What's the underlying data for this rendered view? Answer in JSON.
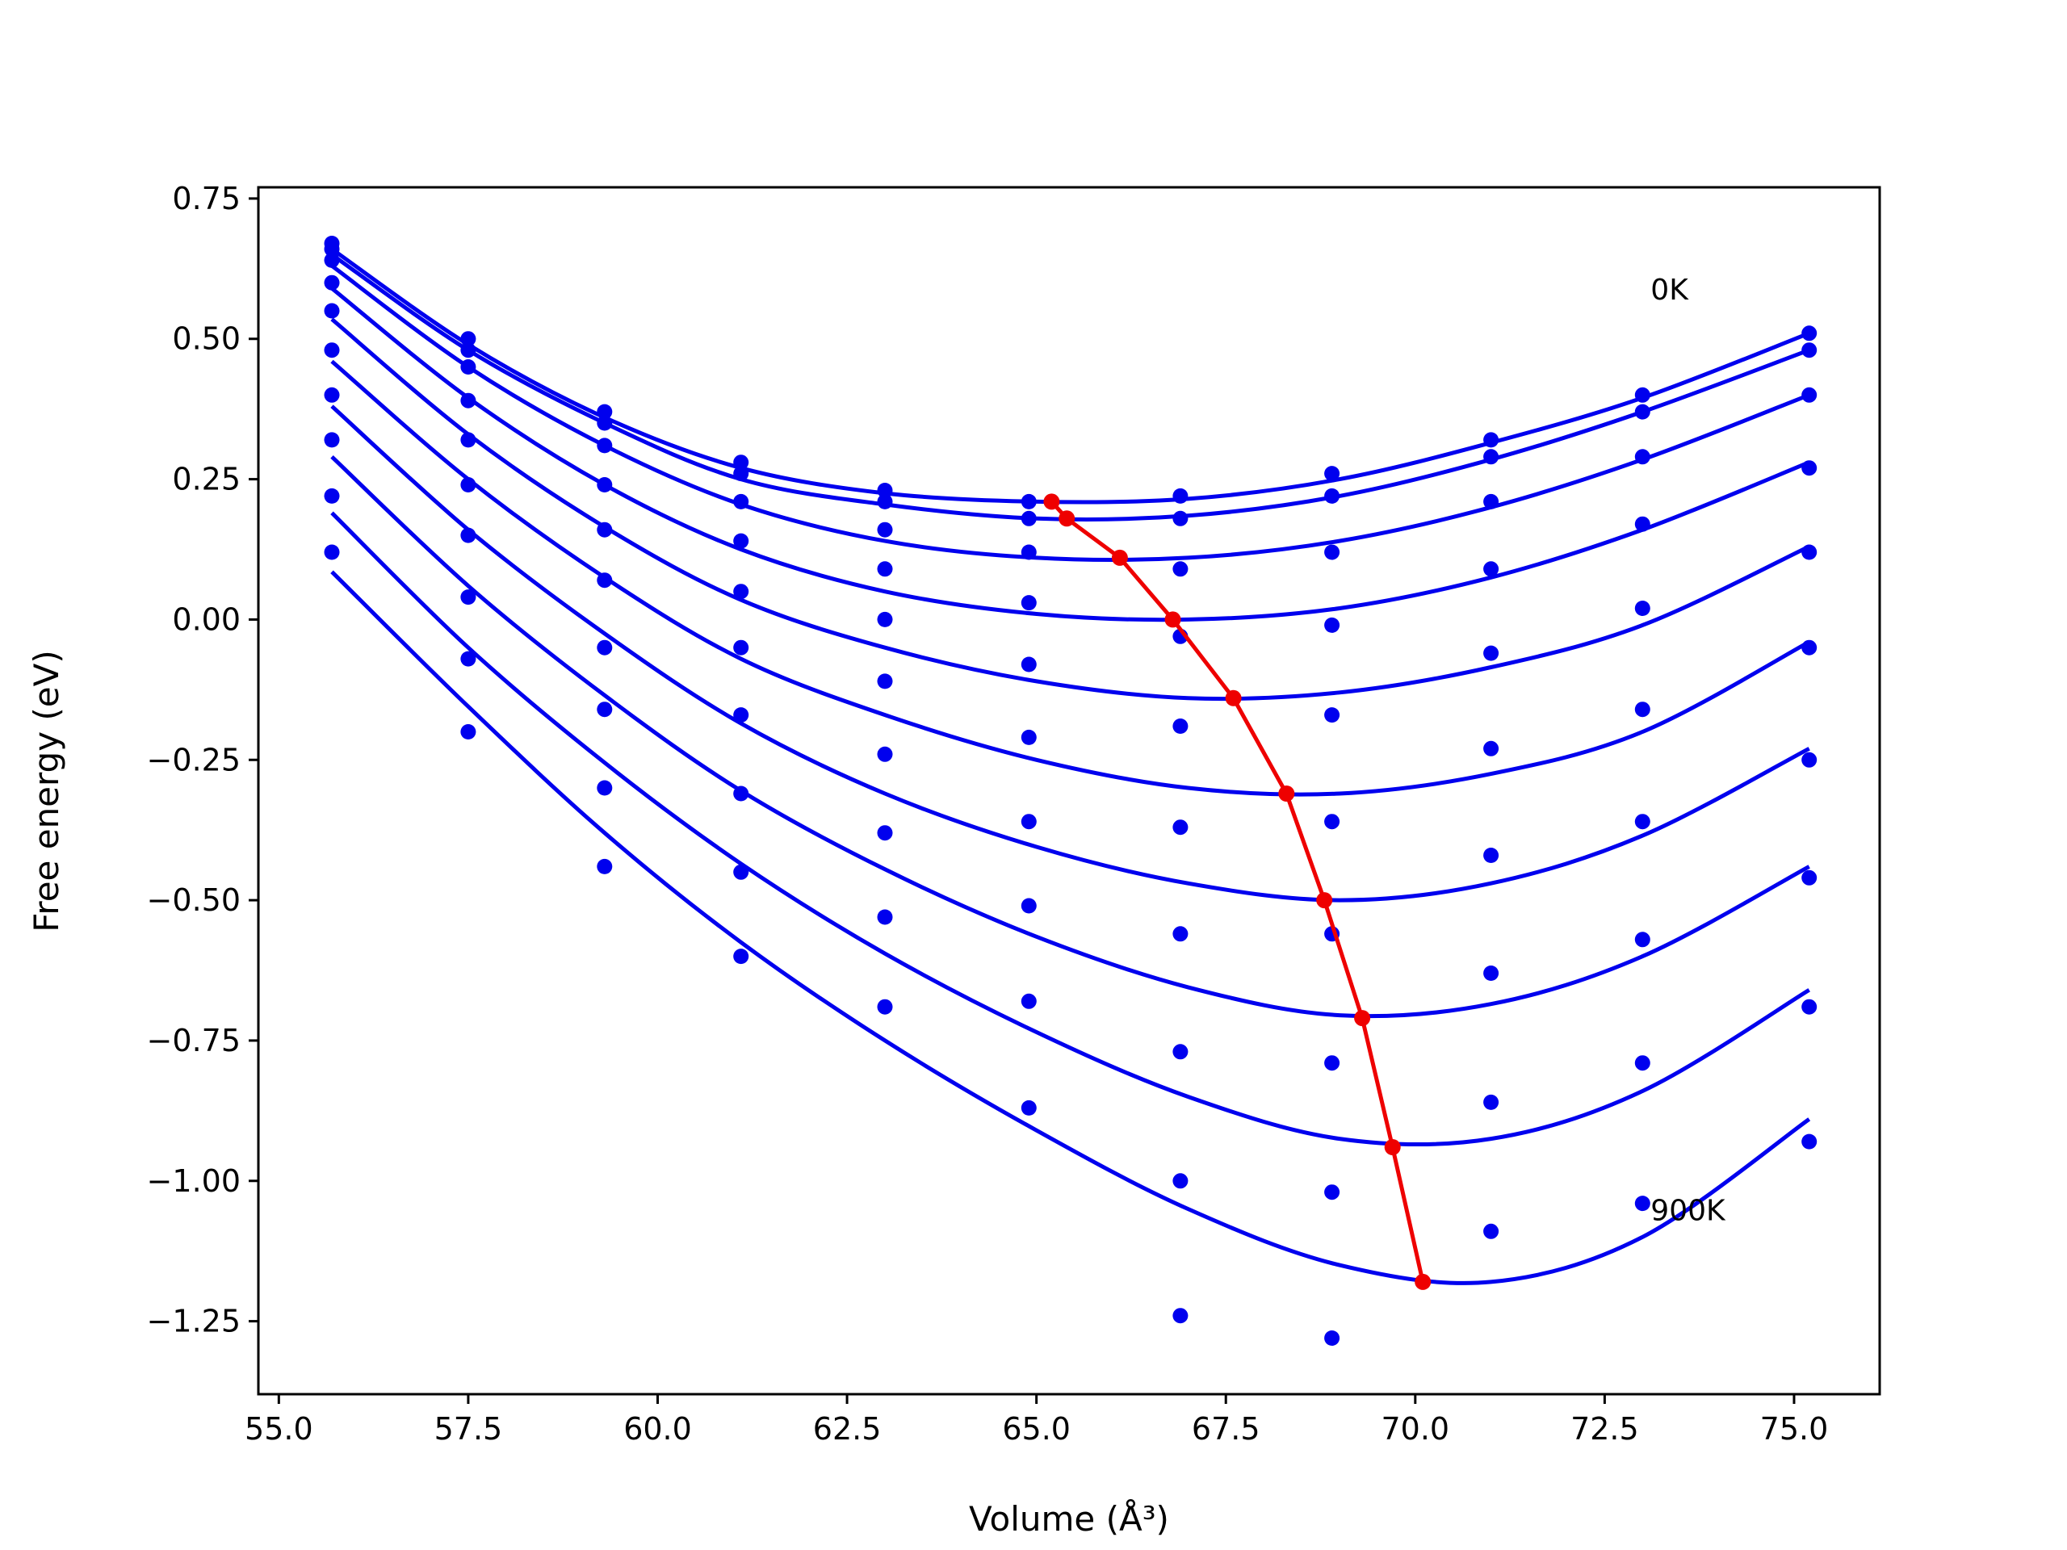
{
  "chart_data": {
    "type": "scatter",
    "xlabel": "Volume (Å³)",
    "ylabel": "Free energy (eV)",
    "xlim": [
      54.73,
      76.13
    ],
    "ylim": [
      -1.38,
      0.77
    ],
    "grid": false,
    "xticks": [
      "55.0",
      "57.5",
      "60.0",
      "62.5",
      "65.0",
      "67.5",
      "70.0",
      "72.5",
      "75.0"
    ],
    "yticks": [
      "0.75",
      "0.50",
      "0.25",
      "0.00",
      "−0.25",
      "−0.50",
      "−0.75",
      "−1.00",
      "−1.25"
    ],
    "x": [
      55.7,
      57.5,
      59.3,
      61.1,
      63.0,
      64.9,
      66.9,
      68.9,
      71.0,
      73.0,
      75.2
    ],
    "annotations": [
      {
        "text": "0K",
        "x": 73.0,
        "y": 0.57
      },
      {
        "text": "900K",
        "x": 73.0,
        "y": -1.07
      }
    ],
    "series": [
      {
        "kind": "points",
        "y": [
          0.67,
          0.5,
          0.37,
          0.28,
          0.23,
          0.21,
          0.22,
          0.26,
          0.32,
          0.4,
          0.51
        ]
      },
      {
        "kind": "points",
        "y": [
          0.66,
          0.48,
          0.35,
          0.26,
          0.21,
          0.18,
          0.18,
          0.22,
          0.29,
          0.37,
          0.48
        ]
      },
      {
        "kind": "points",
        "y": [
          0.64,
          0.45,
          0.31,
          0.21,
          0.16,
          0.12,
          0.09,
          0.12,
          0.21,
          0.29,
          0.4
        ]
      },
      {
        "kind": "points",
        "y": [
          0.6,
          0.39,
          0.24,
          0.14,
          0.09,
          0.03,
          -0.03,
          -0.01,
          0.09,
          0.17,
          0.27
        ]
      },
      {
        "kind": "points",
        "y": [
          0.55,
          0.32,
          0.16,
          0.05,
          0.0,
          -0.08,
          -0.19,
          -0.17,
          -0.06,
          0.02,
          0.12
        ]
      },
      {
        "kind": "points",
        "y": [
          0.48,
          0.24,
          0.07,
          -0.05,
          -0.11,
          -0.21,
          -0.37,
          -0.36,
          -0.23,
          -0.16,
          -0.05
        ]
      },
      {
        "kind": "points",
        "y": [
          0.4,
          0.15,
          -0.05,
          -0.17,
          -0.24,
          -0.36,
          -0.56,
          -0.56,
          -0.42,
          -0.36,
          -0.25
        ]
      },
      {
        "kind": "points",
        "y": [
          0.32,
          0.04,
          -0.16,
          -0.31,
          -0.38,
          -0.51,
          -0.77,
          -0.79,
          -0.63,
          -0.57,
          -0.46
        ]
      },
      {
        "kind": "points",
        "y": [
          0.22,
          -0.07,
          -0.3,
          -0.45,
          -0.53,
          -0.68,
          -1.0,
          -1.02,
          -0.86,
          -0.79,
          -0.69
        ]
      },
      {
        "kind": "points",
        "y": [
          0.12,
          -0.2,
          -0.44,
          -0.6,
          -0.69,
          -0.87,
          -1.24,
          -1.28,
          -1.09,
          -1.04,
          -0.93
        ]
      },
      {
        "kind": "fit",
        "x": [
          55.7,
          57.5,
          59.3,
          61.1,
          63.0,
          65.0,
          67.0,
          69.0,
          71.0,
          73.0,
          75.2
        ],
        "y": [
          0.66,
          0.49,
          0.36,
          0.27,
          0.225,
          0.21,
          0.215,
          0.25,
          0.315,
          0.395,
          0.51
        ]
      },
      {
        "kind": "fit",
        "x": [
          55.7,
          57.5,
          59.3,
          61.1,
          63.0,
          65.0,
          67.0,
          69.0,
          71.0,
          73.0,
          75.2
        ],
        "y": [
          0.65,
          0.48,
          0.35,
          0.25,
          0.205,
          0.18,
          0.185,
          0.22,
          0.285,
          0.37,
          0.48
        ]
      },
      {
        "kind": "fit",
        "x": [
          55.7,
          57.5,
          59.3,
          61.1,
          63.0,
          65.0,
          67.0,
          69.0,
          71.0,
          73.0,
          75.2
        ],
        "y": [
          0.63,
          0.45,
          0.31,
          0.205,
          0.14,
          0.11,
          0.11,
          0.14,
          0.2,
          0.285,
          0.4
        ]
      },
      {
        "kind": "fit",
        "x": [
          55.7,
          57.5,
          59.3,
          61.1,
          63.0,
          65.0,
          67.0,
          69.0,
          71.0,
          73.0,
          75.2
        ],
        "y": [
          0.59,
          0.395,
          0.24,
          0.125,
          0.05,
          0.01,
          0.0,
          0.02,
          0.075,
          0.16,
          0.28
        ]
      },
      {
        "kind": "fit",
        "x": [
          55.7,
          57.5,
          59.3,
          61.1,
          63.0,
          65.0,
          67.0,
          69.0,
          71.0,
          73.0,
          75.2
        ],
        "y": [
          0.535,
          0.33,
          0.165,
          0.035,
          -0.05,
          -0.11,
          -0.14,
          -0.13,
          -0.085,
          -0.01,
          0.13
        ]
      },
      {
        "kind": "fit",
        "x": [
          55.7,
          57.5,
          59.3,
          61.1,
          63.0,
          65.0,
          67.0,
          69.0,
          71.0,
          73.0,
          75.2
        ],
        "y": [
          0.46,
          0.25,
          0.075,
          -0.07,
          -0.17,
          -0.25,
          -0.3,
          -0.31,
          -0.275,
          -0.2,
          -0.04
        ]
      },
      {
        "kind": "fit",
        "x": [
          55.7,
          57.5,
          59.3,
          61.1,
          63.0,
          65.0,
          67.0,
          69.0,
          71.0,
          73.0,
          75.2
        ],
        "y": [
          0.38,
          0.16,
          -0.025,
          -0.185,
          -0.31,
          -0.405,
          -0.47,
          -0.5,
          -0.47,
          -0.385,
          -0.23
        ]
      },
      {
        "kind": "fit",
        "x": [
          55.7,
          57.5,
          59.3,
          61.1,
          63.0,
          65.0,
          67.0,
          69.0,
          71.0,
          73.0,
          75.2
        ],
        "y": [
          0.29,
          0.06,
          -0.135,
          -0.305,
          -0.445,
          -0.565,
          -0.655,
          -0.705,
          -0.685,
          -0.6,
          -0.44
        ]
      },
      {
        "kind": "fit",
        "x": [
          55.7,
          57.5,
          59.3,
          61.1,
          63.0,
          65.0,
          67.0,
          69.0,
          71.0,
          73.0,
          75.2
        ],
        "y": [
          0.19,
          -0.05,
          -0.255,
          -0.435,
          -0.595,
          -0.735,
          -0.85,
          -0.925,
          -0.925,
          -0.84,
          -0.66
        ]
      },
      {
        "kind": "fit",
        "x": [
          55.7,
          57.5,
          59.3,
          61.1,
          63.0,
          65.0,
          67.0,
          69.0,
          71.0,
          73.0,
          75.2
        ],
        "y": [
          0.085,
          -0.155,
          -0.38,
          -0.575,
          -0.75,
          -0.91,
          -1.05,
          -1.15,
          -1.18,
          -1.1,
          -0.89
        ]
      },
      {
        "kind": "minima",
        "x": [
          65.2,
          65.4,
          66.1,
          66.8,
          67.6,
          68.3,
          68.8,
          69.3,
          69.7,
          70.1
        ],
        "y": [
          0.21,
          0.18,
          0.11,
          0.0,
          -0.14,
          -0.31,
          -0.5,
          -0.71,
          -0.94,
          -1.18
        ]
      }
    ]
  }
}
